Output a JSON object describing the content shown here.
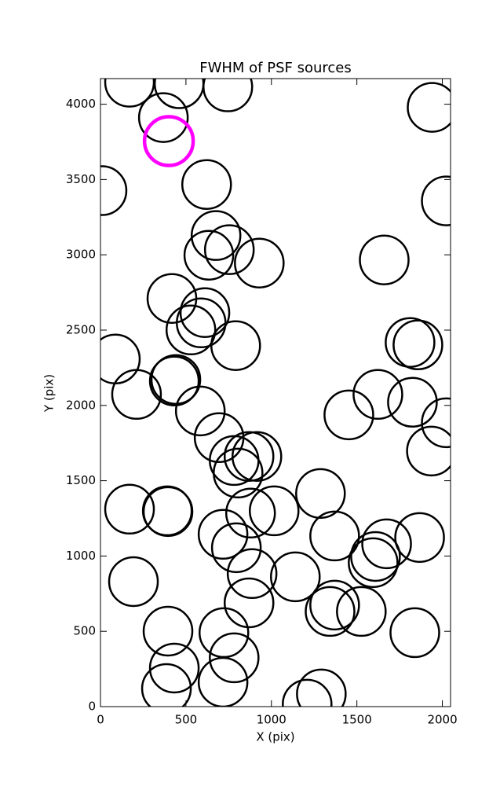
{
  "chart_data": {
    "type": "scatter",
    "title": "FWHM of PSF sources",
    "xlabel": "X (pix)",
    "ylabel": "Y (pix)",
    "xlim": [
      0,
      2048
    ],
    "ylim": [
      0,
      4170
    ],
    "xticks": [
      0,
      500,
      1000,
      1500,
      2000
    ],
    "yticks": [
      0,
      500,
      1000,
      1500,
      2000,
      2500,
      3000,
      3500,
      4000
    ],
    "grid": false,
    "marker": "open-circle",
    "series": [
      {
        "color": "#000000",
        "x": [
          170,
          460,
          745,
          1940,
          368,
          9,
          621,
          2023,
          676,
          754,
          634,
          929,
          1660,
          418,
          611,
          589,
          529,
          791,
          1811,
          1857,
          87,
          211,
          432,
          441,
          584,
          1623,
          1825,
          1453,
          2023,
          694,
          782,
          869,
          915,
          805,
          1936,
          170,
          391,
          395,
          1287,
          1016,
          878,
          717,
          795,
          1370,
          1674,
          1609,
          1595,
          1867,
          193,
          887,
          1140,
          869,
          1370,
          1343,
          1526,
          395,
          722,
          1839,
          782,
          432,
          386,
          717,
          1292,
          1209
        ],
        "y": [
          4146,
          4136,
          4115,
          3979,
          3911,
          3426,
          3467,
          3358,
          3128,
          3034,
          2997,
          2945,
          2966,
          2710,
          2616,
          2548,
          2501,
          2397,
          2418,
          2402,
          2308,
          2073,
          2162,
          2172,
          1963,
          2073,
          2021,
          1937,
          1885,
          1786,
          1634,
          1661,
          1661,
          1551,
          1697,
          1311,
          1300,
          1295,
          1415,
          1300,
          1285,
          1144,
          1055,
          1133,
          1081,
          997,
          956,
          1123,
          830,
          883,
          862,
          689,
          674,
          632,
          632,
          501,
          491,
          491,
          324,
          256,
          120,
          162,
          84,
          16
        ]
      },
      {
        "color": "#ff00ff",
        "x": [
          400
        ],
        "y": [
          3755
        ]
      }
    ]
  }
}
